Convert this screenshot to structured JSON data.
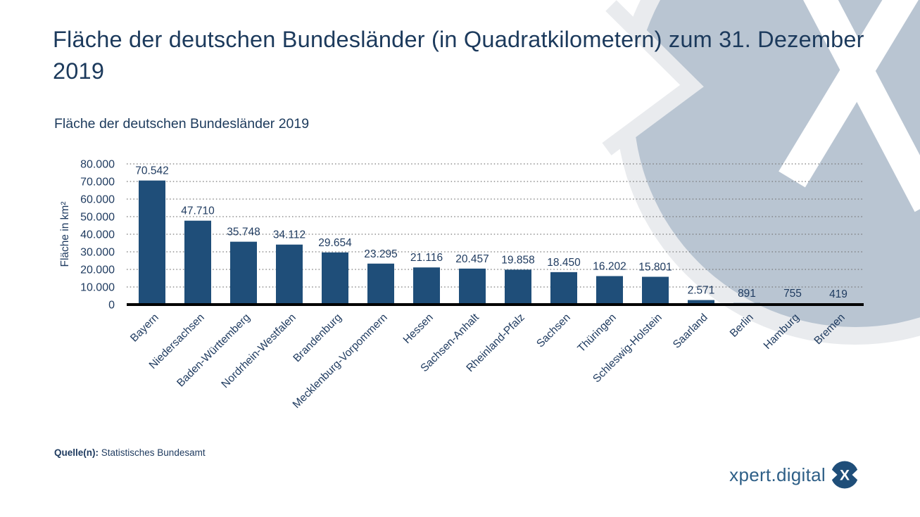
{
  "header": {
    "title": "Fläche der deutschen Bundesländer (in Quadratkilometern) zum 31. Dezember 2019",
    "subtitle": "Fläche der deutschen Bundesländer 2019"
  },
  "footer": {
    "source_label": "Quelle(n):",
    "source_text": "Statistisches Bundesamt"
  },
  "branding": {
    "logo_text": "xpert.digital",
    "logo_letter": "X"
  },
  "colors": {
    "bar": "#1f4e79",
    "text": "#1e3a5f",
    "title_text": "#1c3a5c",
    "grid": "#777777",
    "axis_line": "#000000",
    "watermark_circle": "#b9c5d2",
    "watermark_ring": "#e9ebee",
    "logo_circle": "#1f4e79"
  },
  "chart_data": {
    "type": "bar",
    "title": "Fläche der deutschen Bundesländer 2019",
    "xlabel": "",
    "ylabel": "Fläche in km²",
    "ylim": [
      0,
      80000
    ],
    "ytick_step": 10000,
    "ytick_labels": [
      "80.000",
      "70.000",
      "60.000",
      "50.000",
      "40.000",
      "30.000",
      "20.000",
      "10.000",
      "0"
    ],
    "grid": "horizontal-dotted",
    "legend": "none",
    "categories": [
      "Bayern",
      "Niedersachsen",
      "Baden-Württemberg",
      "Nordrhein-Westfalen",
      "Brandenburg",
      "Mecklenburg-Vorpommern",
      "Hessen",
      "Sachsen-Anhalt",
      "Rheinland-Pfalz",
      "Sachsen",
      "Thüringen",
      "Schleswig-Holstein",
      "Saarland",
      "Berlin",
      "Hamburg",
      "Bremen"
    ],
    "values": [
      70542,
      47710,
      35748,
      34112,
      29654,
      23295,
      21116,
      20457,
      19858,
      18450,
      16202,
      15801,
      2571,
      891,
      755,
      419
    ],
    "value_labels": [
      "70.542",
      "47.710",
      "35.748",
      "34.112",
      "29.654",
      "23.295",
      "21.116",
      "20.457",
      "19.858",
      "18.450",
      "16.202",
      "15.801",
      "2.571",
      "891",
      "755",
      "419"
    ]
  }
}
